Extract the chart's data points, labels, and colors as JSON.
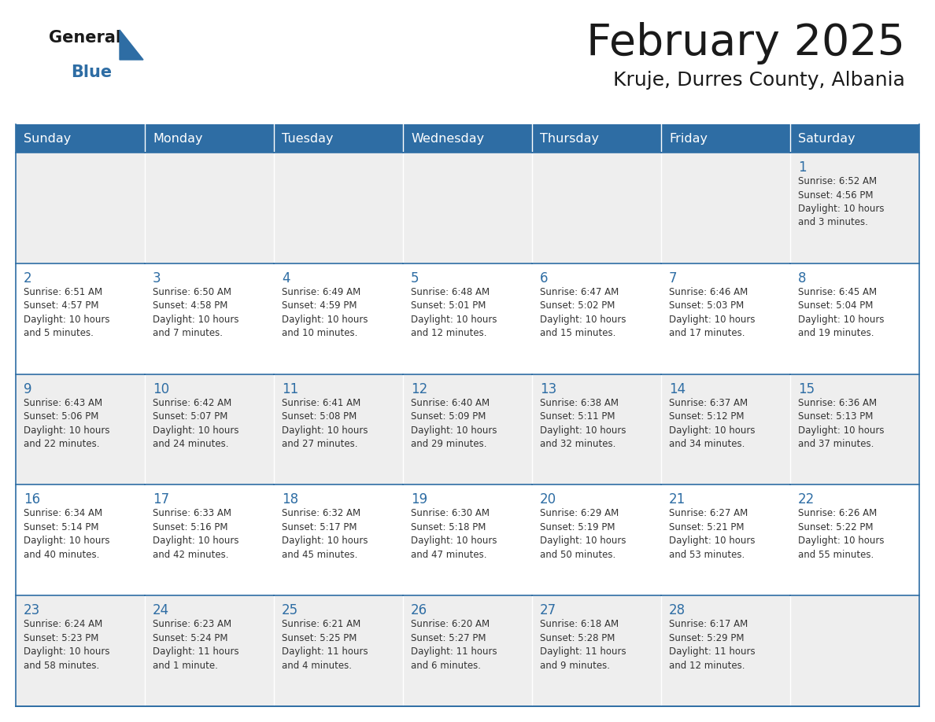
{
  "title": "February 2025",
  "subtitle": "Kruje, Durres County, Albania",
  "header_bg": "#2E6DA4",
  "header_text_color": "#FFFFFF",
  "cell_bg_odd": "#EEEEEE",
  "cell_bg_even": "#FFFFFF",
  "border_color": "#2E6DA4",
  "text_color": "#333333",
  "day_number_color": "#2E6DA4",
  "days_of_week": [
    "Sunday",
    "Monday",
    "Tuesday",
    "Wednesday",
    "Thursday",
    "Friday",
    "Saturday"
  ],
  "logo_general_color": "#1a1a1a",
  "logo_blue_color": "#2E6DA4",
  "calendar_data": [
    [
      null,
      null,
      null,
      null,
      null,
      null,
      {
        "day": "1",
        "sunrise": "6:52 AM",
        "sunset": "4:56 PM",
        "daylight": "10 hours\nand 3 minutes."
      }
    ],
    [
      {
        "day": "2",
        "sunrise": "6:51 AM",
        "sunset": "4:57 PM",
        "daylight": "10 hours\nand 5 minutes."
      },
      {
        "day": "3",
        "sunrise": "6:50 AM",
        "sunset": "4:58 PM",
        "daylight": "10 hours\nand 7 minutes."
      },
      {
        "day": "4",
        "sunrise": "6:49 AM",
        "sunset": "4:59 PM",
        "daylight": "10 hours\nand 10 minutes."
      },
      {
        "day": "5",
        "sunrise": "6:48 AM",
        "sunset": "5:01 PM",
        "daylight": "10 hours\nand 12 minutes."
      },
      {
        "day": "6",
        "sunrise": "6:47 AM",
        "sunset": "5:02 PM",
        "daylight": "10 hours\nand 15 minutes."
      },
      {
        "day": "7",
        "sunrise": "6:46 AM",
        "sunset": "5:03 PM",
        "daylight": "10 hours\nand 17 minutes."
      },
      {
        "day": "8",
        "sunrise": "6:45 AM",
        "sunset": "5:04 PM",
        "daylight": "10 hours\nand 19 minutes."
      }
    ],
    [
      {
        "day": "9",
        "sunrise": "6:43 AM",
        "sunset": "5:06 PM",
        "daylight": "10 hours\nand 22 minutes."
      },
      {
        "day": "10",
        "sunrise": "6:42 AM",
        "sunset": "5:07 PM",
        "daylight": "10 hours\nand 24 minutes."
      },
      {
        "day": "11",
        "sunrise": "6:41 AM",
        "sunset": "5:08 PM",
        "daylight": "10 hours\nand 27 minutes."
      },
      {
        "day": "12",
        "sunrise": "6:40 AM",
        "sunset": "5:09 PM",
        "daylight": "10 hours\nand 29 minutes."
      },
      {
        "day": "13",
        "sunrise": "6:38 AM",
        "sunset": "5:11 PM",
        "daylight": "10 hours\nand 32 minutes."
      },
      {
        "day": "14",
        "sunrise": "6:37 AM",
        "sunset": "5:12 PM",
        "daylight": "10 hours\nand 34 minutes."
      },
      {
        "day": "15",
        "sunrise": "6:36 AM",
        "sunset": "5:13 PM",
        "daylight": "10 hours\nand 37 minutes."
      }
    ],
    [
      {
        "day": "16",
        "sunrise": "6:34 AM",
        "sunset": "5:14 PM",
        "daylight": "10 hours\nand 40 minutes."
      },
      {
        "day": "17",
        "sunrise": "6:33 AM",
        "sunset": "5:16 PM",
        "daylight": "10 hours\nand 42 minutes."
      },
      {
        "day": "18",
        "sunrise": "6:32 AM",
        "sunset": "5:17 PM",
        "daylight": "10 hours\nand 45 minutes."
      },
      {
        "day": "19",
        "sunrise": "6:30 AM",
        "sunset": "5:18 PM",
        "daylight": "10 hours\nand 47 minutes."
      },
      {
        "day": "20",
        "sunrise": "6:29 AM",
        "sunset": "5:19 PM",
        "daylight": "10 hours\nand 50 minutes."
      },
      {
        "day": "21",
        "sunrise": "6:27 AM",
        "sunset": "5:21 PM",
        "daylight": "10 hours\nand 53 minutes."
      },
      {
        "day": "22",
        "sunrise": "6:26 AM",
        "sunset": "5:22 PM",
        "daylight": "10 hours\nand 55 minutes."
      }
    ],
    [
      {
        "day": "23",
        "sunrise": "6:24 AM",
        "sunset": "5:23 PM",
        "daylight": "10 hours\nand 58 minutes."
      },
      {
        "day": "24",
        "sunrise": "6:23 AM",
        "sunset": "5:24 PM",
        "daylight": "11 hours\nand 1 minute."
      },
      {
        "day": "25",
        "sunrise": "6:21 AM",
        "sunset": "5:25 PM",
        "daylight": "11 hours\nand 4 minutes."
      },
      {
        "day": "26",
        "sunrise": "6:20 AM",
        "sunset": "5:27 PM",
        "daylight": "11 hours\nand 6 minutes."
      },
      {
        "day": "27",
        "sunrise": "6:18 AM",
        "sunset": "5:28 PM",
        "daylight": "11 hours\nand 9 minutes."
      },
      {
        "day": "28",
        "sunrise": "6:17 AM",
        "sunset": "5:29 PM",
        "daylight": "11 hours\nand 12 minutes."
      },
      null
    ]
  ]
}
